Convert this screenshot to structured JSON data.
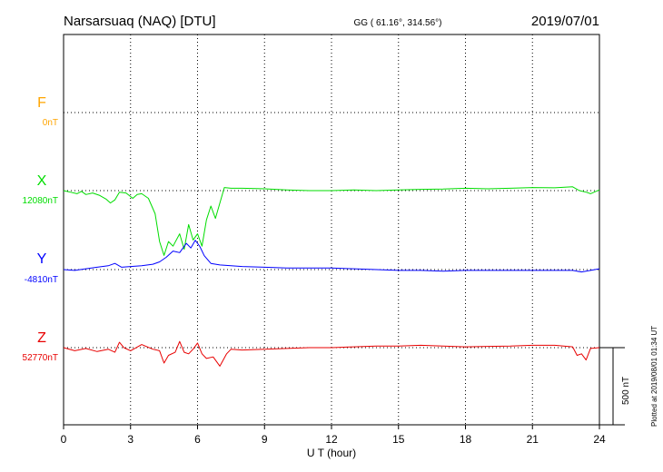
{
  "header": {
    "station": "Narsarsuaq (NAQ)  [DTU]",
    "coords": "GG ( 61.16°, 314.56°)",
    "date": "2019/07/01"
  },
  "footer": {
    "plotted": "Plotted at 2019/08/01 01:34 UT"
  },
  "chart_data": {
    "type": "line",
    "xlabel": "U T (hour)",
    "xlim": [
      0,
      24
    ],
    "x_ticks": [
      0,
      3,
      6,
      9,
      12,
      15,
      18,
      21,
      24
    ],
    "x_tick_labels": [
      "0",
      "3",
      "6",
      "9",
      "12",
      "15",
      "18",
      "21",
      "24"
    ],
    "scale_bar": {
      "label": "500 nT",
      "value_nT": 500
    },
    "series": [
      {
        "name": "F",
        "baseline_label": "0nT",
        "color": "#ffa500",
        "points": []
      },
      {
        "name": "X",
        "baseline_label": "12080nT",
        "color": "#00dd00",
        "points": [
          [
            0,
            0
          ],
          [
            0.3,
            -10
          ],
          [
            0.6,
            -20
          ],
          [
            0.8,
            -5
          ],
          [
            1.0,
            -25
          ],
          [
            1.3,
            -15
          ],
          [
            1.6,
            -30
          ],
          [
            1.9,
            -55
          ],
          [
            2.1,
            -80
          ],
          [
            2.3,
            -60
          ],
          [
            2.5,
            -10
          ],
          [
            2.8,
            -15
          ],
          [
            3.1,
            -50
          ],
          [
            3.3,
            -25
          ],
          [
            3.5,
            -20
          ],
          [
            3.8,
            -50
          ],
          [
            4.1,
            -150
          ],
          [
            4.3,
            -330
          ],
          [
            4.5,
            -420
          ],
          [
            4.7,
            -330
          ],
          [
            4.9,
            -360
          ],
          [
            5.2,
            -280
          ],
          [
            5.4,
            -380
          ],
          [
            5.6,
            -220
          ],
          [
            5.8,
            -320
          ],
          [
            6.0,
            -280
          ],
          [
            6.2,
            -360
          ],
          [
            6.4,
            -190
          ],
          [
            6.6,
            -100
          ],
          [
            6.8,
            -180
          ],
          [
            7.0,
            -80
          ],
          [
            7.2,
            20
          ],
          [
            7.5,
            15
          ],
          [
            8.0,
            15
          ],
          [
            9,
            12
          ],
          [
            10,
            5
          ],
          [
            11,
            0
          ],
          [
            12,
            0
          ],
          [
            13,
            5
          ],
          [
            14,
            0
          ],
          [
            15,
            5
          ],
          [
            16,
            8
          ],
          [
            17,
            10
          ],
          [
            18,
            15
          ],
          [
            19,
            12
          ],
          [
            20,
            15
          ],
          [
            21,
            20
          ],
          [
            22,
            18
          ],
          [
            22.8,
            25
          ],
          [
            23.1,
            0
          ],
          [
            23.4,
            -10
          ],
          [
            23.6,
            -20
          ],
          [
            24,
            5
          ]
        ]
      },
      {
        "name": "Y",
        "baseline_label": "-4810nT",
        "color": "#0000ff",
        "points": [
          [
            0,
            0
          ],
          [
            0.5,
            -5
          ],
          [
            1,
            5
          ],
          [
            1.5,
            15
          ],
          [
            2,
            25
          ],
          [
            2.3,
            40
          ],
          [
            2.6,
            15
          ],
          [
            3,
            20
          ],
          [
            3.5,
            25
          ],
          [
            4,
            35
          ],
          [
            4.3,
            50
          ],
          [
            4.6,
            80
          ],
          [
            4.9,
            120
          ],
          [
            5.2,
            110
          ],
          [
            5.5,
            170
          ],
          [
            5.7,
            140
          ],
          [
            5.9,
            190
          ],
          [
            6.1,
            150
          ],
          [
            6.3,
            90
          ],
          [
            6.6,
            40
          ],
          [
            7,
            30
          ],
          [
            7.5,
            25
          ],
          [
            8,
            20
          ],
          [
            9,
            15
          ],
          [
            10,
            10
          ],
          [
            11,
            10
          ],
          [
            11.5,
            10
          ],
          [
            12,
            10
          ],
          [
            13,
            5
          ],
          [
            14,
            0
          ],
          [
            15,
            -5
          ],
          [
            16,
            -5
          ],
          [
            17,
            -10
          ],
          [
            18,
            -5
          ],
          [
            19,
            -5
          ],
          [
            20,
            -5
          ],
          [
            21,
            -5
          ],
          [
            22,
            -5
          ],
          [
            22.8,
            -5
          ],
          [
            23.2,
            -15
          ],
          [
            23.6,
            -5
          ],
          [
            24,
            5
          ]
        ]
      },
      {
        "name": "Z",
        "baseline_label": "52770nT",
        "color": "#e80000",
        "points": [
          [
            0,
            0
          ],
          [
            0.5,
            -20
          ],
          [
            1,
            -5
          ],
          [
            1.5,
            -25
          ],
          [
            2,
            -10
          ],
          [
            2.3,
            -30
          ],
          [
            2.5,
            35
          ],
          [
            2.7,
            0
          ],
          [
            3,
            -20
          ],
          [
            3.5,
            20
          ],
          [
            4,
            -10
          ],
          [
            4.3,
            -20
          ],
          [
            4.5,
            -100
          ],
          [
            4.7,
            -50
          ],
          [
            5.0,
            -30
          ],
          [
            5.2,
            40
          ],
          [
            5.4,
            -30
          ],
          [
            5.6,
            -40
          ],
          [
            5.8,
            -10
          ],
          [
            6.0,
            30
          ],
          [
            6.2,
            -40
          ],
          [
            6.4,
            -70
          ],
          [
            6.7,
            -60
          ],
          [
            7.0,
            -120
          ],
          [
            7.3,
            -40
          ],
          [
            7.5,
            -10
          ],
          [
            8,
            -15
          ],
          [
            9,
            -10
          ],
          [
            10,
            -5
          ],
          [
            11,
            0
          ],
          [
            12,
            0
          ],
          [
            13,
            5
          ],
          [
            14,
            10
          ],
          [
            15,
            10
          ],
          [
            16,
            15
          ],
          [
            17,
            10
          ],
          [
            18,
            5
          ],
          [
            19,
            8
          ],
          [
            20,
            10
          ],
          [
            21,
            15
          ],
          [
            22,
            15
          ],
          [
            22.8,
            5
          ],
          [
            23.0,
            -50
          ],
          [
            23.2,
            -40
          ],
          [
            23.4,
            -80
          ],
          [
            23.6,
            -5
          ],
          [
            24,
            0
          ]
        ]
      }
    ]
  }
}
